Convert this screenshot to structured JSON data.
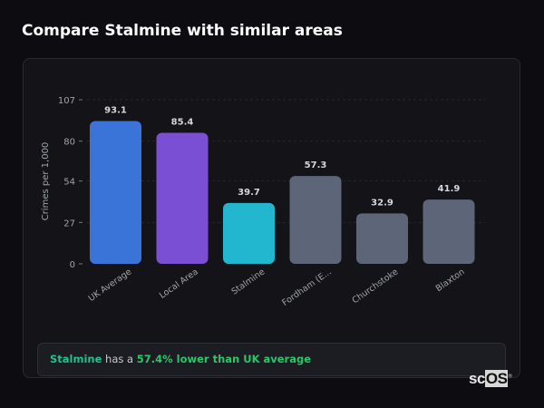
{
  "header": {
    "title": "Compare Stalmine with similar areas"
  },
  "chart_data": {
    "type": "bar",
    "categories": [
      "UK Average",
      "Local Area",
      "Stalmine",
      "Fordham (E...",
      "Churchstoke",
      "Blaxton"
    ],
    "values": [
      93.1,
      85.4,
      39.7,
      57.3,
      32.9,
      41.9
    ],
    "value_labels": [
      "93.1",
      "85.4",
      "39.7",
      "57.3",
      "32.9",
      "41.9"
    ],
    "colors": [
      "#3a74d9",
      "#7a4fd3",
      "#22b6cf",
      "#5c6678",
      "#5c6678",
      "#5c6678"
    ],
    "ylabel": "Crimes per 1,000",
    "xlabel": "",
    "yticks": [
      0,
      27,
      54,
      80,
      107
    ],
    "ylim": [
      0,
      107
    ],
    "grid": true
  },
  "summary": {
    "subject": "Stalmine",
    "middle": " has a ",
    "highlight": "57.4% lower than UK average"
  },
  "logo": {
    "text_a": "sc",
    "text_b": "OS",
    "mark": "®"
  }
}
